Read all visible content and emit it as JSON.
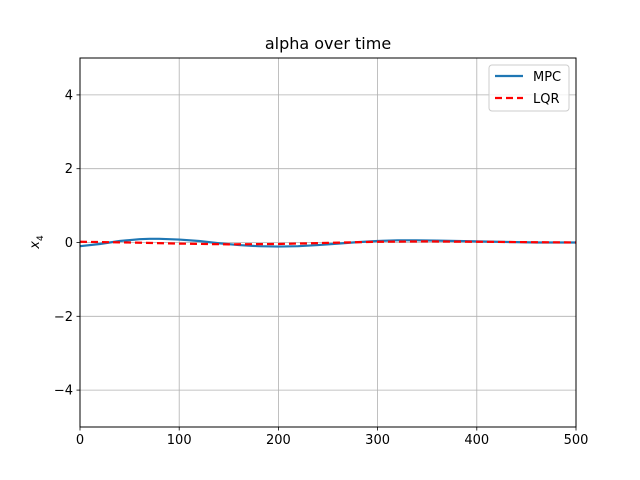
{
  "chart_data": {
    "type": "line",
    "title": "alpha over time",
    "xlabel": "",
    "ylabel_base": "x",
    "ylabel_sub": "4",
    "xlim": [
      0,
      500
    ],
    "ylim": [
      -5,
      5
    ],
    "xticks": [
      0,
      100,
      200,
      300,
      400,
      500
    ],
    "yticks": [
      -4,
      -2,
      0,
      2,
      4
    ],
    "ytick_labels": [
      "−4",
      "−2",
      "0",
      "2",
      "4"
    ],
    "grid": true,
    "legend_position": "top-right",
    "series": [
      {
        "name": "MPC",
        "color": "#1f77b4",
        "style": "solid",
        "x": [
          0,
          20,
          40,
          60,
          70,
          80,
          100,
          120,
          140,
          160,
          180,
          200,
          220,
          240,
          260,
          280,
          300,
          320,
          340,
          360,
          380,
          400,
          420,
          440,
          460,
          480,
          500
        ],
        "y": [
          -0.1,
          -0.04,
          0.04,
          0.09,
          0.1,
          0.1,
          0.08,
          0.04,
          -0.02,
          -0.07,
          -0.1,
          -0.11,
          -0.1,
          -0.07,
          -0.03,
          0.01,
          0.04,
          0.06,
          0.06,
          0.05,
          0.04,
          0.03,
          0.02,
          0.01,
          0.0,
          0.0,
          0.0
        ]
      },
      {
        "name": "LQR",
        "color": "#ff0000",
        "style": "dashed",
        "x": [
          0,
          50,
          100,
          150,
          200,
          250,
          300,
          350,
          400,
          450,
          500
        ],
        "y": [
          0.02,
          0.0,
          -0.03,
          -0.05,
          -0.04,
          -0.01,
          0.02,
          0.03,
          0.02,
          0.01,
          0.0
        ]
      }
    ]
  }
}
